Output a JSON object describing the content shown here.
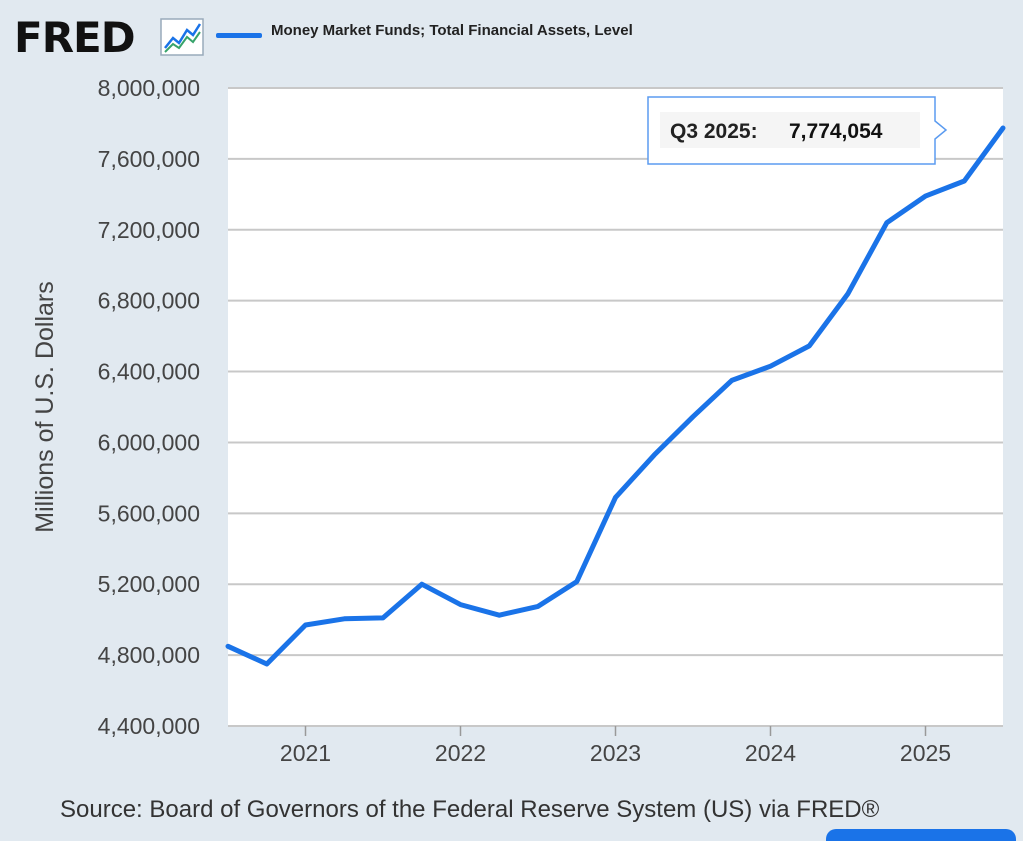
{
  "header": {
    "logo": "FRED",
    "logo_icon": "chart-line-icon",
    "legend_label": "Money Market Funds; Total Financial Assets, Level"
  },
  "chart_data": {
    "type": "line",
    "ylabel": "Millions of U.S. Dollars",
    "xlabel": "",
    "ylim": [
      4400000,
      8000000
    ],
    "yticks": [
      4400000,
      4800000,
      5200000,
      5600000,
      6000000,
      6400000,
      6800000,
      7200000,
      7600000,
      8000000
    ],
    "ytick_labels": [
      "4,400,000",
      "4,800,000",
      "5,200,000",
      "5,600,000",
      "6,000,000",
      "6,400,000",
      "6,800,000",
      "7,200,000",
      "7,600,000",
      "8,000,000"
    ],
    "xticks": [
      "2021",
      "2022",
      "2023",
      "2024",
      "2025"
    ],
    "grid": true,
    "series": [
      {
        "name": "Money Market Funds; Total Financial Assets, Level",
        "color": "#1a73e8",
        "x": [
          "Q3 2020",
          "Q4 2020",
          "Q1 2021",
          "Q2 2021",
          "Q3 2021",
          "Q4 2021",
          "Q1 2022",
          "Q2 2022",
          "Q3 2022",
          "Q4 2022",
          "Q1 2023",
          "Q2 2023",
          "Q3 2023",
          "Q4 2023",
          "Q1 2024",
          "Q2 2024",
          "Q3 2024",
          "Q4 2024",
          "Q1 2025",
          "Q2 2025",
          "Q3 2025"
        ],
        "values": [
          4850000,
          4750000,
          4970000,
          5005000,
          5010000,
          5200000,
          5085000,
          5025000,
          5075000,
          5215000,
          5690000,
          5930000,
          6145000,
          6350000,
          6430000,
          6545000,
          6840000,
          7240000,
          7390000,
          7475000,
          7774054
        ]
      }
    ],
    "tooltip": {
      "label": "Q3 2025:",
      "value": "7,774,054"
    }
  },
  "footer": {
    "source": "Source: Board of Governors of the Federal Reserve System (US) via FRED®"
  }
}
